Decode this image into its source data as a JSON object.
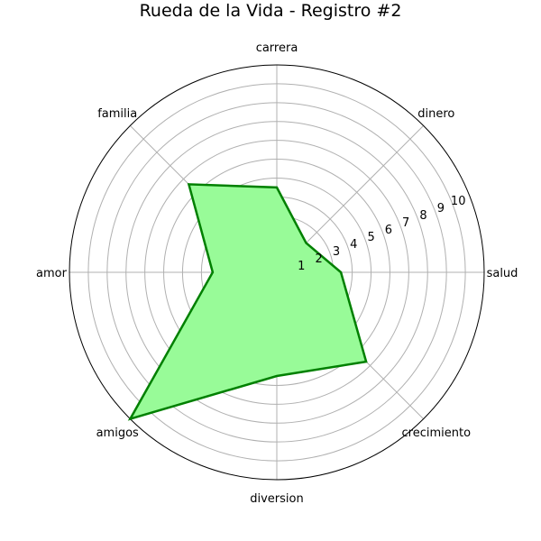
{
  "chart_data": {
    "type": "radar",
    "title": "Rueda de la Vida - Registro #2",
    "categories": [
      "salud",
      "dinero",
      "carrera",
      "familia",
      "amor",
      "amigos",
      "diversion",
      "crecimiento"
    ],
    "values": [
      3.4,
      2.2,
      4.5,
      6.6,
      3.4,
      11.0,
      5.5,
      6.7
    ],
    "rlim": [
      0,
      11
    ],
    "rticks": [
      1,
      2,
      3,
      4,
      5,
      6,
      7,
      8,
      9,
      10
    ],
    "grid": true,
    "colors": {
      "line": "#008000",
      "fill": "#98FB98",
      "grid": "#b0b0b0",
      "outline": "#000000"
    }
  }
}
